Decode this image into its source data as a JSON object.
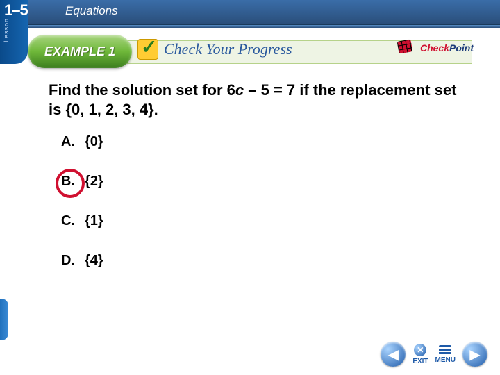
{
  "header": {
    "lesson_tag": "Lesson",
    "lesson_number": "1–5",
    "topic": "Equations",
    "band_bg": "#eef4e4",
    "bar_gradient_top": "#3a6da8",
    "bar_gradient_bottom": "#2a4e7a"
  },
  "example": {
    "label": "EXAMPLE 1",
    "pod_gradient": [
      "#a8d57f",
      "#6fb83a",
      "#3b7d1e"
    ]
  },
  "check_progress": {
    "label": "Check Your Progress",
    "icon_bg": "#ffcc33",
    "check_color": "#2b7d1e",
    "text_color": "#2b5a9e"
  },
  "checkpoint": {
    "word1": "Check",
    "word2": "Point",
    "word1_color": "#d01030",
    "word2_color": "#1a3a7a",
    "grid_color": "#d01030"
  },
  "question": {
    "prefix": "Find the solution set for 6",
    "variable": "c",
    "suffix": " – 5 = 7 if the replacement set is {0, 1, 2, 3, 4}.",
    "font_size": 22
  },
  "choices": [
    {
      "letter": "A.",
      "text": "{0}",
      "correct": false
    },
    {
      "letter": "B.",
      "text": "{2}",
      "correct": true
    },
    {
      "letter": "C.",
      "text": "{1}",
      "correct": false
    },
    {
      "letter": "D.",
      "text": "{4}",
      "correct": false
    }
  ],
  "correct_circle_color": "#d01030",
  "nav": {
    "prev_glyph": "◀",
    "next_glyph": "▶",
    "exit_label": "EXIT",
    "menu_label": "MENU",
    "btn_gradient": [
      "#aad4ff",
      "#1e5aa8"
    ]
  }
}
